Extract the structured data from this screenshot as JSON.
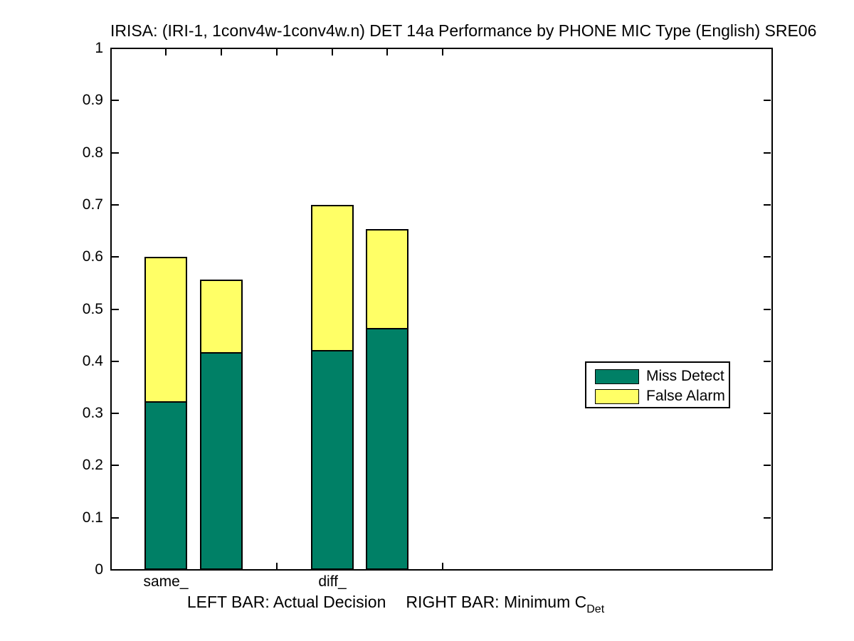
{
  "figure_title": "IRISA: (IRI-1, 1conv4w-1conv4w.n) DET 14a Performance by PHONE MIC Type (English) SRE06",
  "x_axis": {
    "tick_labels": [
      "same_",
      "diff_"
    ],
    "caption": {
      "left": "LEFT BAR: Actual Decision",
      "right": "RIGHT BAR: Minimum C",
      "subscript": "Det"
    }
  },
  "y_axis": {
    "tick_labels": [
      "0",
      "0.1",
      "0.2",
      "0.3",
      "0.4",
      "0.5",
      "0.6",
      "0.7",
      "0.8",
      "0.9",
      "1"
    ],
    "tick_values": [
      0,
      0.1,
      0.2,
      0.3,
      0.4,
      0.5,
      0.6,
      0.7,
      0.8,
      0.9,
      1
    ]
  },
  "legend": {
    "items": [
      {
        "label": "Miss Detect",
        "color": "#008066"
      },
      {
        "label": "False Alarm",
        "color": "#FFFF66"
      }
    ]
  },
  "colors": {
    "miss_detect": "#008066",
    "false_alarm": "#FFFF66",
    "edge": "#000000",
    "background": "#FFFFFF"
  },
  "chart_data": {
    "type": "bar",
    "stacked": true,
    "title": "IRISA: (IRI-1, 1conv4w-1conv4w.n) DET 14a Performance by PHONE MIC Type (English) SRE06",
    "categories": [
      "same_",
      "diff_"
    ],
    "bar_semantics": {
      "left_bar": "Actual Decision",
      "right_bar": "Minimum CDet"
    },
    "series": [
      {
        "name": "Miss Detect",
        "color": "#008066",
        "values": [
          0.323,
          0.418,
          0.421,
          0.464
        ]
      },
      {
        "name": "False Alarm",
        "color": "#FFFF66",
        "values": [
          0.277,
          0.139,
          0.279,
          0.19
        ]
      }
    ],
    "bars": [
      {
        "id": "same-actual-decision",
        "group": "same_",
        "bar": "Actual Decision",
        "slot": 1,
        "miss_detect": 0.323,
        "false_alarm": 0.277,
        "total": 0.6
      },
      {
        "id": "same-minimum-cdet",
        "group": "same_",
        "bar": "Minimum CDet",
        "slot": 2,
        "miss_detect": 0.418,
        "false_alarm": 0.139,
        "total": 0.557
      },
      {
        "id": "diff-actual-decision",
        "group": "diff_",
        "bar": "Actual Decision",
        "slot": 4,
        "miss_detect": 0.421,
        "false_alarm": 0.279,
        "total": 0.7
      },
      {
        "id": "diff-minimum-cdet",
        "group": "diff_",
        "bar": "Minimum CDet",
        "slot": 5,
        "miss_detect": 0.464,
        "false_alarm": 0.19,
        "total": 0.654
      }
    ],
    "x_tick_slots": [
      1,
      2,
      3,
      4,
      5,
      6
    ],
    "x_label_slots": {
      "same_": 1,
      "diff_": 4
    },
    "ylim": [
      0,
      1
    ],
    "y_tick_step": 0.1,
    "grid": false,
    "legend_position": "middle-right"
  }
}
